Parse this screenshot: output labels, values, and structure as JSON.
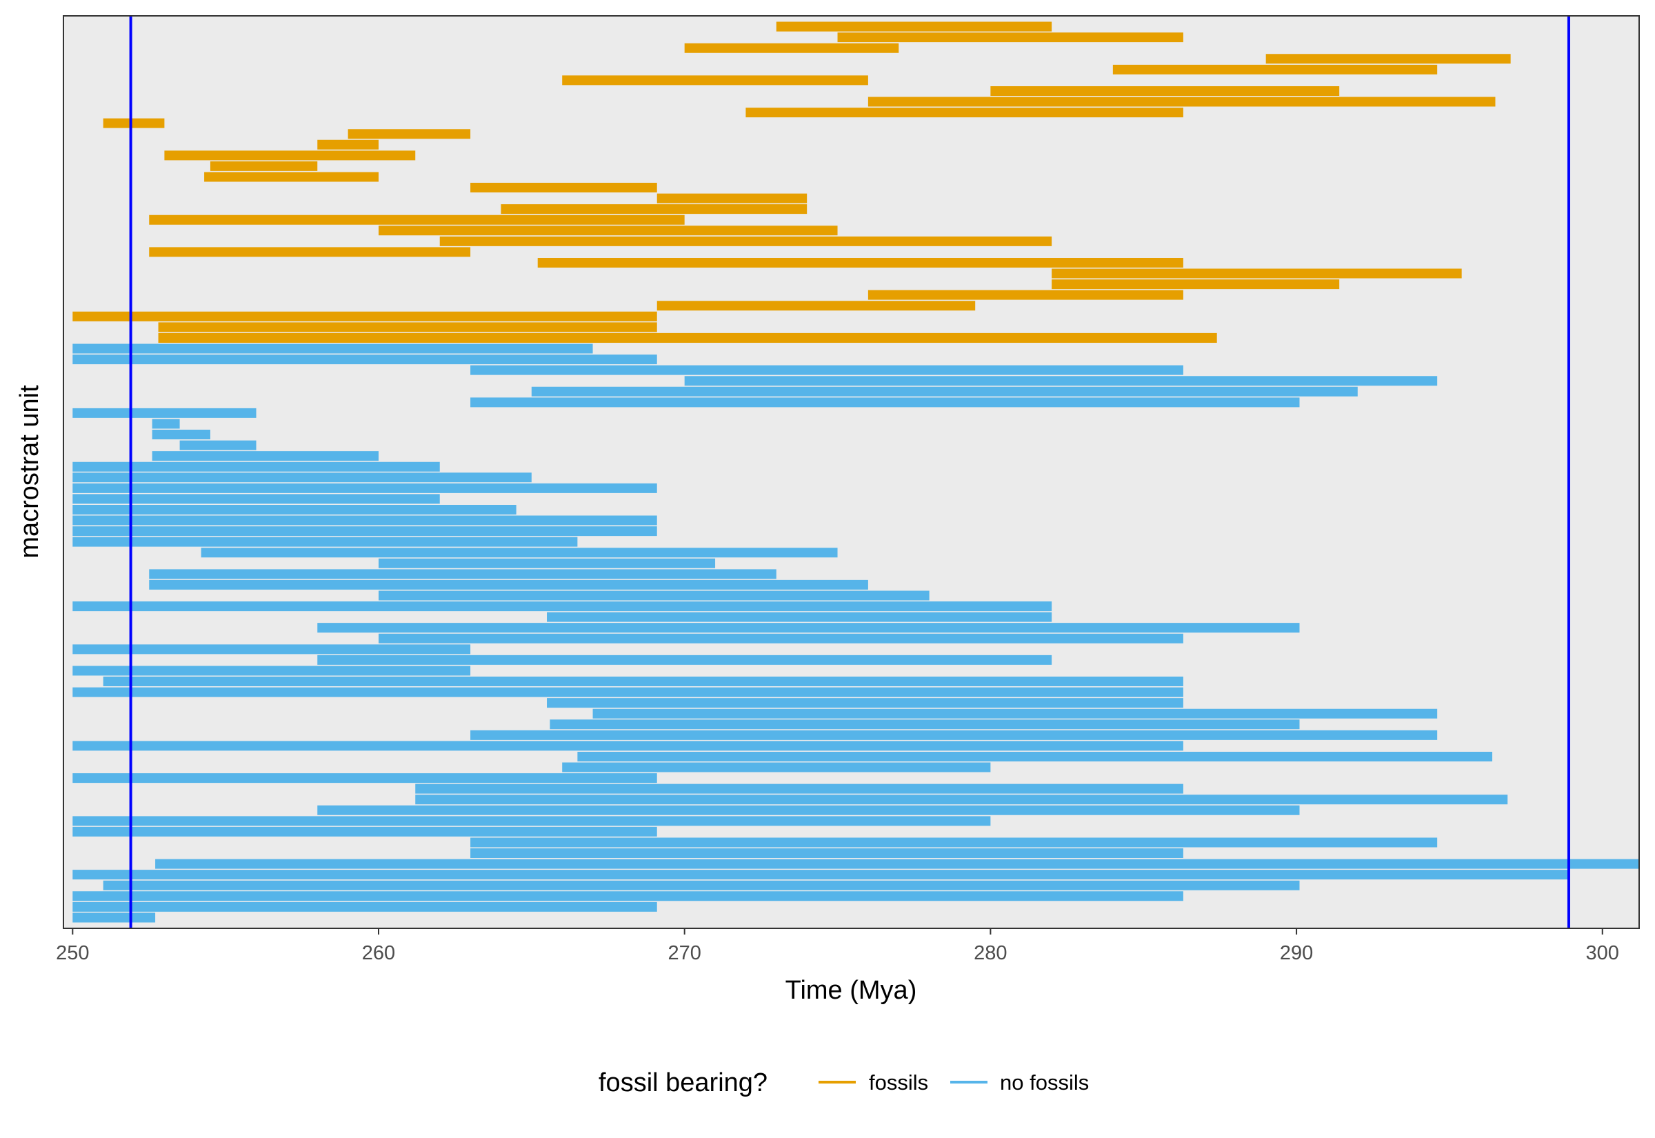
{
  "chart_data": {
    "type": "range_bar",
    "title": "",
    "xlabel": "Time (Mya)",
    "ylabel": "macrostrat unit",
    "xlim": [
      249.7,
      301.2
    ],
    "x_reversed": false,
    "x_ticks": [
      250,
      260,
      270,
      280,
      290,
      300
    ],
    "x_tick_labels": [
      "250",
      "260",
      "270",
      "280",
      "290",
      "300"
    ],
    "y_ticks": [],
    "grid": false,
    "panel_background": "#ebebeb",
    "reference_lines": [
      {
        "x": 251.9,
        "color": "#0000ff"
      },
      {
        "x": 298.9,
        "color": "#0000ff"
      }
    ],
    "legend": {
      "title": "fossil bearing?",
      "position": "bottom",
      "entries": [
        {
          "label": "fossils",
          "color": "#e69f00"
        },
        {
          "label": "no fossils",
          "color": "#56b4e9"
        }
      ]
    },
    "series": [
      {
        "name": "no fossils",
        "color": "#56b4e9",
        "segments": [
          [
            250.0,
            252.7
          ],
          [
            250.0,
            269.1
          ],
          [
            250.0,
            286.3
          ],
          [
            251.0,
            290.1
          ],
          [
            250.0,
            298.9
          ],
          [
            252.7,
            301.2
          ],
          [
            263.0,
            286.3
          ],
          [
            263.0,
            294.6
          ],
          [
            250.0,
            269.1
          ],
          [
            250.0,
            280.0
          ],
          [
            258.0,
            290.1
          ],
          [
            261.2,
            296.9
          ],
          [
            261.2,
            286.3
          ],
          [
            250.0,
            269.1
          ],
          [
            266.0,
            280.0
          ],
          [
            266.5,
            296.4
          ],
          [
            250.0,
            286.3
          ],
          [
            263.0,
            294.6
          ],
          [
            265.6,
            290.1
          ],
          [
            267.0,
            294.6
          ],
          [
            265.5,
            286.3
          ],
          [
            250.0,
            286.3
          ],
          [
            251.0,
            286.3
          ],
          [
            250.0,
            263.0
          ],
          [
            258.0,
            282.0
          ],
          [
            250.0,
            263.0
          ],
          [
            260.0,
            286.3
          ],
          [
            258.0,
            290.1
          ],
          [
            265.5,
            282.0
          ],
          [
            250.0,
            282.0
          ],
          [
            260.0,
            278.0
          ],
          [
            252.5,
            276.0
          ],
          [
            252.5,
            273.0
          ],
          [
            260.0,
            271.0
          ],
          [
            254.2,
            275.0
          ],
          [
            250.0,
            266.5
          ],
          [
            250.0,
            269.1
          ],
          [
            250.0,
            269.1
          ],
          [
            250.0,
            264.5
          ],
          [
            250.0,
            262.0
          ],
          [
            250.0,
            269.1
          ],
          [
            250.0,
            265.0
          ],
          [
            250.0,
            262.0
          ],
          [
            252.6,
            260.0
          ],
          [
            253.5,
            256.0
          ],
          [
            252.6,
            254.5
          ],
          [
            252.6,
            253.5
          ],
          [
            250.0,
            256.0
          ],
          [
            263.0,
            290.1
          ],
          [
            265.0,
            292.0
          ],
          [
            270.0,
            294.6
          ],
          [
            263.0,
            286.3
          ],
          [
            250.0,
            269.1
          ],
          [
            250.0,
            267.0
          ]
        ]
      },
      {
        "name": "fossils",
        "color": "#e69f00",
        "segments": [
          [
            252.8,
            287.4
          ],
          [
            252.8,
            269.1
          ],
          [
            250.0,
            269.1
          ],
          [
            269.1,
            279.5
          ],
          [
            276.0,
            286.3
          ],
          [
            282.0,
            291.4
          ],
          [
            282.0,
            295.4
          ],
          [
            265.2,
            286.3
          ],
          [
            252.5,
            263.0
          ],
          [
            262.0,
            282.0
          ],
          [
            260.0,
            275.0
          ],
          [
            252.5,
            270.0
          ],
          [
            264.0,
            274.0
          ],
          [
            269.1,
            274.0
          ],
          [
            263.0,
            269.1
          ],
          [
            254.3,
            260.0
          ],
          [
            254.5,
            258.0
          ],
          [
            253.0,
            261.2
          ],
          [
            258.0,
            260.0
          ],
          [
            259.0,
            263.0
          ],
          [
            251.0,
            253.0
          ],
          [
            272.0,
            286.3
          ],
          [
            276.0,
            296.5
          ],
          [
            280.0,
            291.4
          ],
          [
            266.0,
            276.0
          ],
          [
            284.0,
            294.6
          ],
          [
            289.0,
            297.0
          ],
          [
            270.0,
            277.0
          ],
          [
            275.0,
            286.3
          ],
          [
            273.0,
            282.0
          ]
        ]
      }
    ]
  }
}
